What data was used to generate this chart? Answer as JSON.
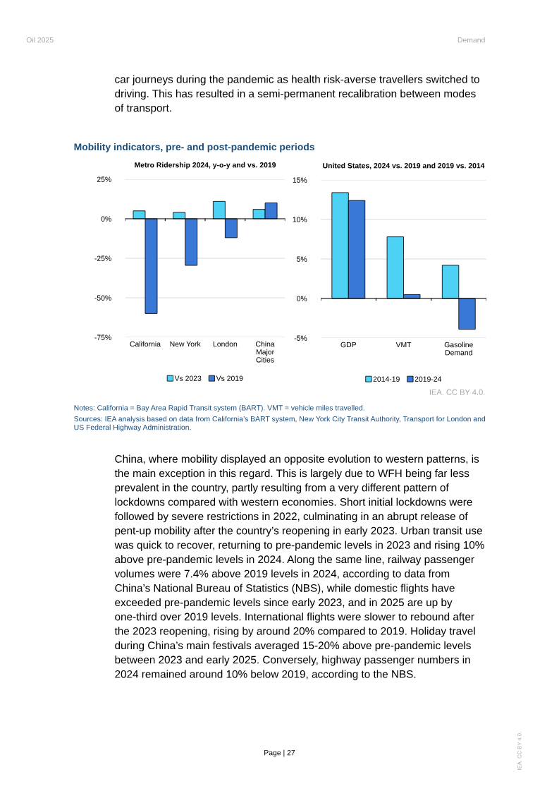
{
  "chart_data": [
    {
      "type": "other",
      "annotations": [
        "Oil 2025",
        "Demand",
        "car journeys during the pandemic as health risk-averse travellers switched to driving. This has resulted in a semi-permanent recalibration between modes of transport.",
        "Mobility indicators, pre- and post-pandemic periods"
      ]
    },
    {
      "type": "bar",
      "title": "Metro Ridership 2024, y-o-y and vs. 2019",
      "categories": [
        "California",
        "New York",
        "London",
        "China\nMajor\nCities"
      ],
      "series": [
        {
          "name": "Vs 2023",
          "color": "#4dd2f5",
          "values": [
            5,
            4,
            11,
            6
          ]
        },
        {
          "name": "Vs 2019",
          "color": "#3a78d8",
          "values": [
            -60,
            -29.5,
            -12,
            10
          ]
        }
      ],
      "ylim": [
        -75,
        25
      ],
      "yticks": [
        {
          "value": -75,
          "label": "-75%"
        },
        {
          "value": -50,
          "label": "-50%"
        },
        {
          "value": -25,
          "label": "-25%"
        },
        {
          "value": 0,
          "label": "0%"
        },
        {
          "value": 25,
          "label": "25%"
        }
      ],
      "grid": "y",
      "legend": "bottom"
    },
    {
      "type": "bar",
      "title": "United States, 2024 vs. 2019 and 2019 vs. 2014",
      "categories": [
        "GDP",
        "VMT",
        "Gasoline\nDemand"
      ],
      "series": [
        {
          "name": "2014-19",
          "color": "#4dd2f5",
          "values": [
            13.4,
            7.8,
            4.2
          ]
        },
        {
          "name": "2019-24",
          "color": "#3a78d8",
          "values": [
            12.4,
            0.5,
            -3.9
          ]
        }
      ],
      "ylim": [
        -5,
        15
      ],
      "yticks": [
        {
          "value": -5,
          "label": "-5%"
        },
        {
          "value": 0,
          "label": "0%"
        },
        {
          "value": 5,
          "label": "5%"
        },
        {
          "value": 10,
          "label": "10%"
        },
        {
          "value": 15,
          "label": "15%"
        }
      ],
      "grid": "y",
      "legend": "bottom",
      "annotations": [
        "IEA. CC BY 4.0."
      ]
    },
    {
      "type": "other",
      "annotations": [
        "Notes: California = Bay Area Rapid Transit system (BART). VMT = vehicle miles travelled.",
        "Sources: IEA analysis based on data from California’s BART system, New York City Transit Authority, Transport for London and US Federal Highway Administration.",
        "China, where mobility displayed an opposite evolution to western patterns, is the main exception in this regard. This is largely due to WFH being far less prevalent in the country, partly resulting from a very different pattern of lockdowns compared with western economies. Short initial lockdowns were followed by severe restrictions in 2022, culminating in an abrupt release of pent-up mobility after the country’s reopening in early 2023. Urban transit use was quick to recover, returning to pre-pandemic levels in 2023 and rising 10% above pre-pandemic levels in 2024. Along the same line, railway passenger volumes were 7.4% above 2019 levels in 2024, according to data from China’s National Bureau of Statistics (NBS), while domestic flights have exceeded pre-pandemic levels since early 2023, and in 2025 are up by one-third over 2019 levels. International flights were slower to rebound after the 2023 reopening, rising by around 20% compared to 2019. Holiday travel during China’s main festivals averaged 15-20% above pre-pandemic levels between 2023 and early 2025. Conversely, highway passenger numbers in 2024 remained around 10% below 2019, according to the NBS.",
        "Page | 27",
        "IEA. CC BY 4.0."
      ]
    }
  ]
}
